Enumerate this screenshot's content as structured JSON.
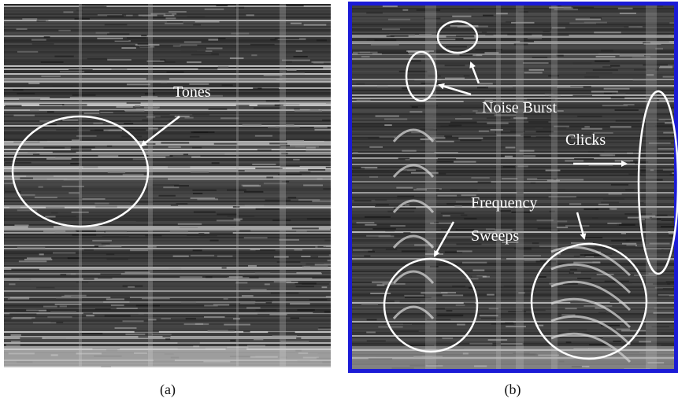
{
  "panels": [
    {
      "caption": "(a)",
      "annotations": [
        {
          "label": "Tones"
        }
      ]
    },
    {
      "caption": "(b)",
      "annotations": [
        {
          "label": "Noise Burst"
        },
        {
          "label": "Clicks"
        },
        {
          "label_lines": [
            "Frequency",
            "Sweeps"
          ]
        }
      ]
    }
  ]
}
